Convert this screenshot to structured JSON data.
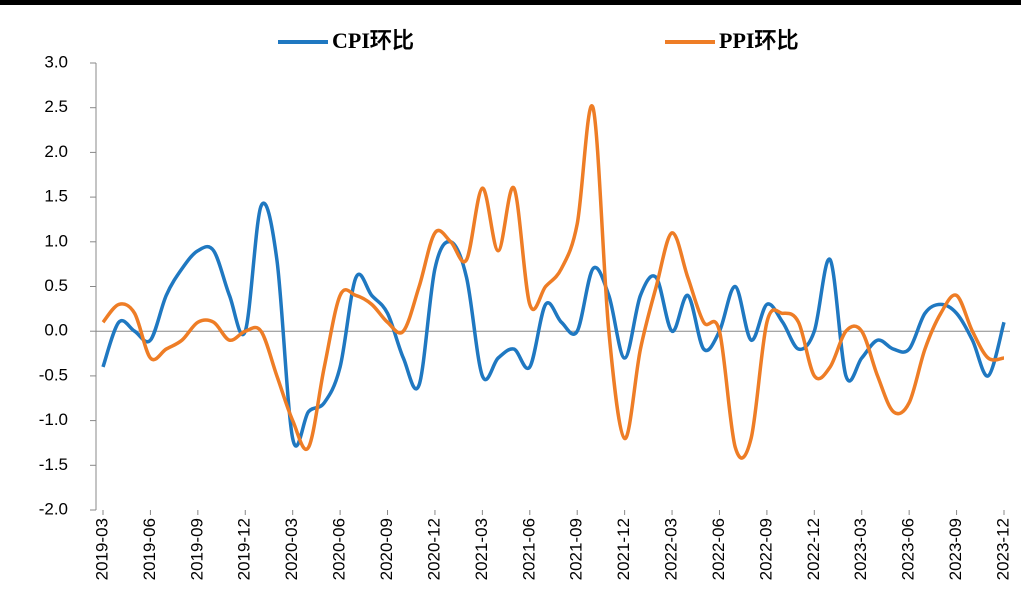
{
  "chart_data": {
    "type": "line",
    "categories": [
      "2019-03",
      null,
      null,
      "2019-06",
      null,
      null,
      "2019-09",
      null,
      null,
      "2019-12",
      null,
      null,
      "2020-03",
      null,
      null,
      "2020-06",
      null,
      null,
      "2020-09",
      null,
      null,
      "2020-12",
      null,
      null,
      "2021-03",
      null,
      null,
      "2021-06",
      null,
      null,
      "2021-09",
      null,
      null,
      "2021-12",
      null,
      null,
      "2022-03",
      null,
      null,
      "2022-06",
      null,
      null,
      "2022-09",
      null,
      null,
      "2022-12",
      null,
      null,
      "2023-03",
      null,
      null,
      "2023-06",
      null,
      null,
      "2023-09",
      null,
      null,
      "2023-12"
    ],
    "series": [
      {
        "name": "CPI环比",
        "color": "#1f78c1",
        "values": [
          -0.4,
          0.1,
          0,
          -0.1,
          0.4,
          0.7,
          0.9,
          0.9,
          0.4,
          0,
          1.4,
          0.8,
          -1.2,
          -0.9,
          -0.8,
          -0.4,
          0.6,
          0.4,
          0.2,
          -0.3,
          -0.6,
          0.7,
          1.0,
          0.6,
          -0.5,
          -0.3,
          -0.2,
          -0.4,
          0.3,
          0.1,
          0,
          0.7,
          0.4,
          -0.3,
          0.4,
          0.6,
          0,
          0.4,
          -0.2,
          0,
          0.5,
          -0.1,
          0.3,
          0.1,
          -0.2,
          0,
          0.8,
          -0.5,
          -0.3,
          -0.1,
          -0.2,
          -0.2,
          0.2,
          0.3,
          0.2,
          -0.1,
          -0.5,
          0.1
        ]
      },
      {
        "name": "PPI环比",
        "color": "#ee7d26",
        "values": [
          0.1,
          0.3,
          0.2,
          -0.3,
          -0.2,
          -0.1,
          0.1,
          0.1,
          -0.1,
          0,
          0,
          -0.5,
          -1.0,
          -1.3,
          -0.4,
          0.4,
          0.4,
          0.3,
          0.1,
          0,
          0.5,
          1.1,
          1.0,
          0.8,
          1.6,
          0.9,
          1.6,
          0.3,
          0.5,
          0.7,
          1.2,
          2.5,
          0,
          -1.2,
          -0.2,
          0.5,
          1.1,
          0.6,
          0.1,
          0,
          -1.3,
          -1.2,
          0.1,
          0.2,
          0.1,
          -0.5,
          -0.4,
          0,
          0,
          -0.5,
          -0.9,
          -0.8,
          -0.2,
          0.2,
          0.4,
          0,
          -0.3,
          -0.3
        ]
      }
    ],
    "ylim": [
      -2,
      3
    ],
    "yticks": [
      {
        "value": -2,
        "label": "-2.0"
      },
      -1.5,
      {
        "value": -1,
        "label": "-1.0"
      },
      -0.5,
      {
        "value": 0,
        "label": "0.0"
      },
      0.5,
      {
        "value": 1,
        "label": "1.0"
      },
      1.5,
      {
        "value": 2,
        "label": "2.0"
      },
      2.5,
      {
        "value": 3,
        "label": "3.0"
      }
    ],
    "legend": "top"
  }
}
